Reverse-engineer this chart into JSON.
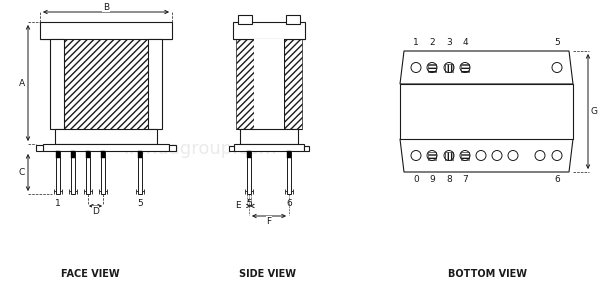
{
  "bg_color": "#ffffff",
  "line_color": "#1a1a1a",
  "title_fontsize": 7,
  "dim_fontsize": 6.5,
  "face_view_label": "FACE VIEW",
  "side_view_label": "SIDE VIEW",
  "bottom_view_label": "BOTTOM VIEW"
}
